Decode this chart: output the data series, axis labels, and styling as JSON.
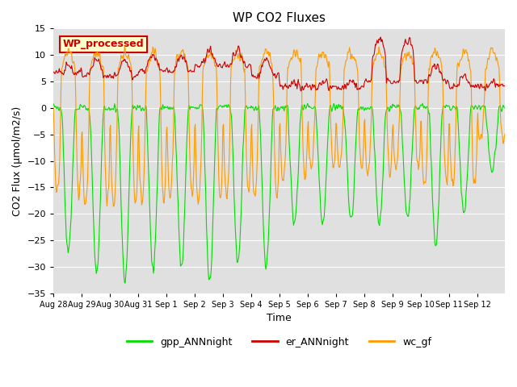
{
  "title": "WP CO2 Fluxes",
  "xlabel": "Time",
  "ylabel": "CO2 Flux (μmol/m2/s)",
  "ylim": [
    -35,
    15
  ],
  "yticks": [
    -35,
    -30,
    -25,
    -20,
    -15,
    -10,
    -5,
    0,
    5,
    10,
    15
  ],
  "annotation": "WP_processed",
  "annotation_box_facecolor": "#ffffcc",
  "annotation_box_edgecolor": "#cc0000",
  "annotation_text_color": "#cc0000",
  "line_gpp_color": "#00dd00",
  "line_er_color": "#cc0000",
  "line_wc_color": "#ff9900",
  "legend_labels": [
    "gpp_ANNnight",
    "er_ANNnight",
    "wc_gf"
  ],
  "bg_color": "#e0e0e0",
  "fig_color": "#ffffff",
  "n_days": 16,
  "half_hours_per_day": 48
}
